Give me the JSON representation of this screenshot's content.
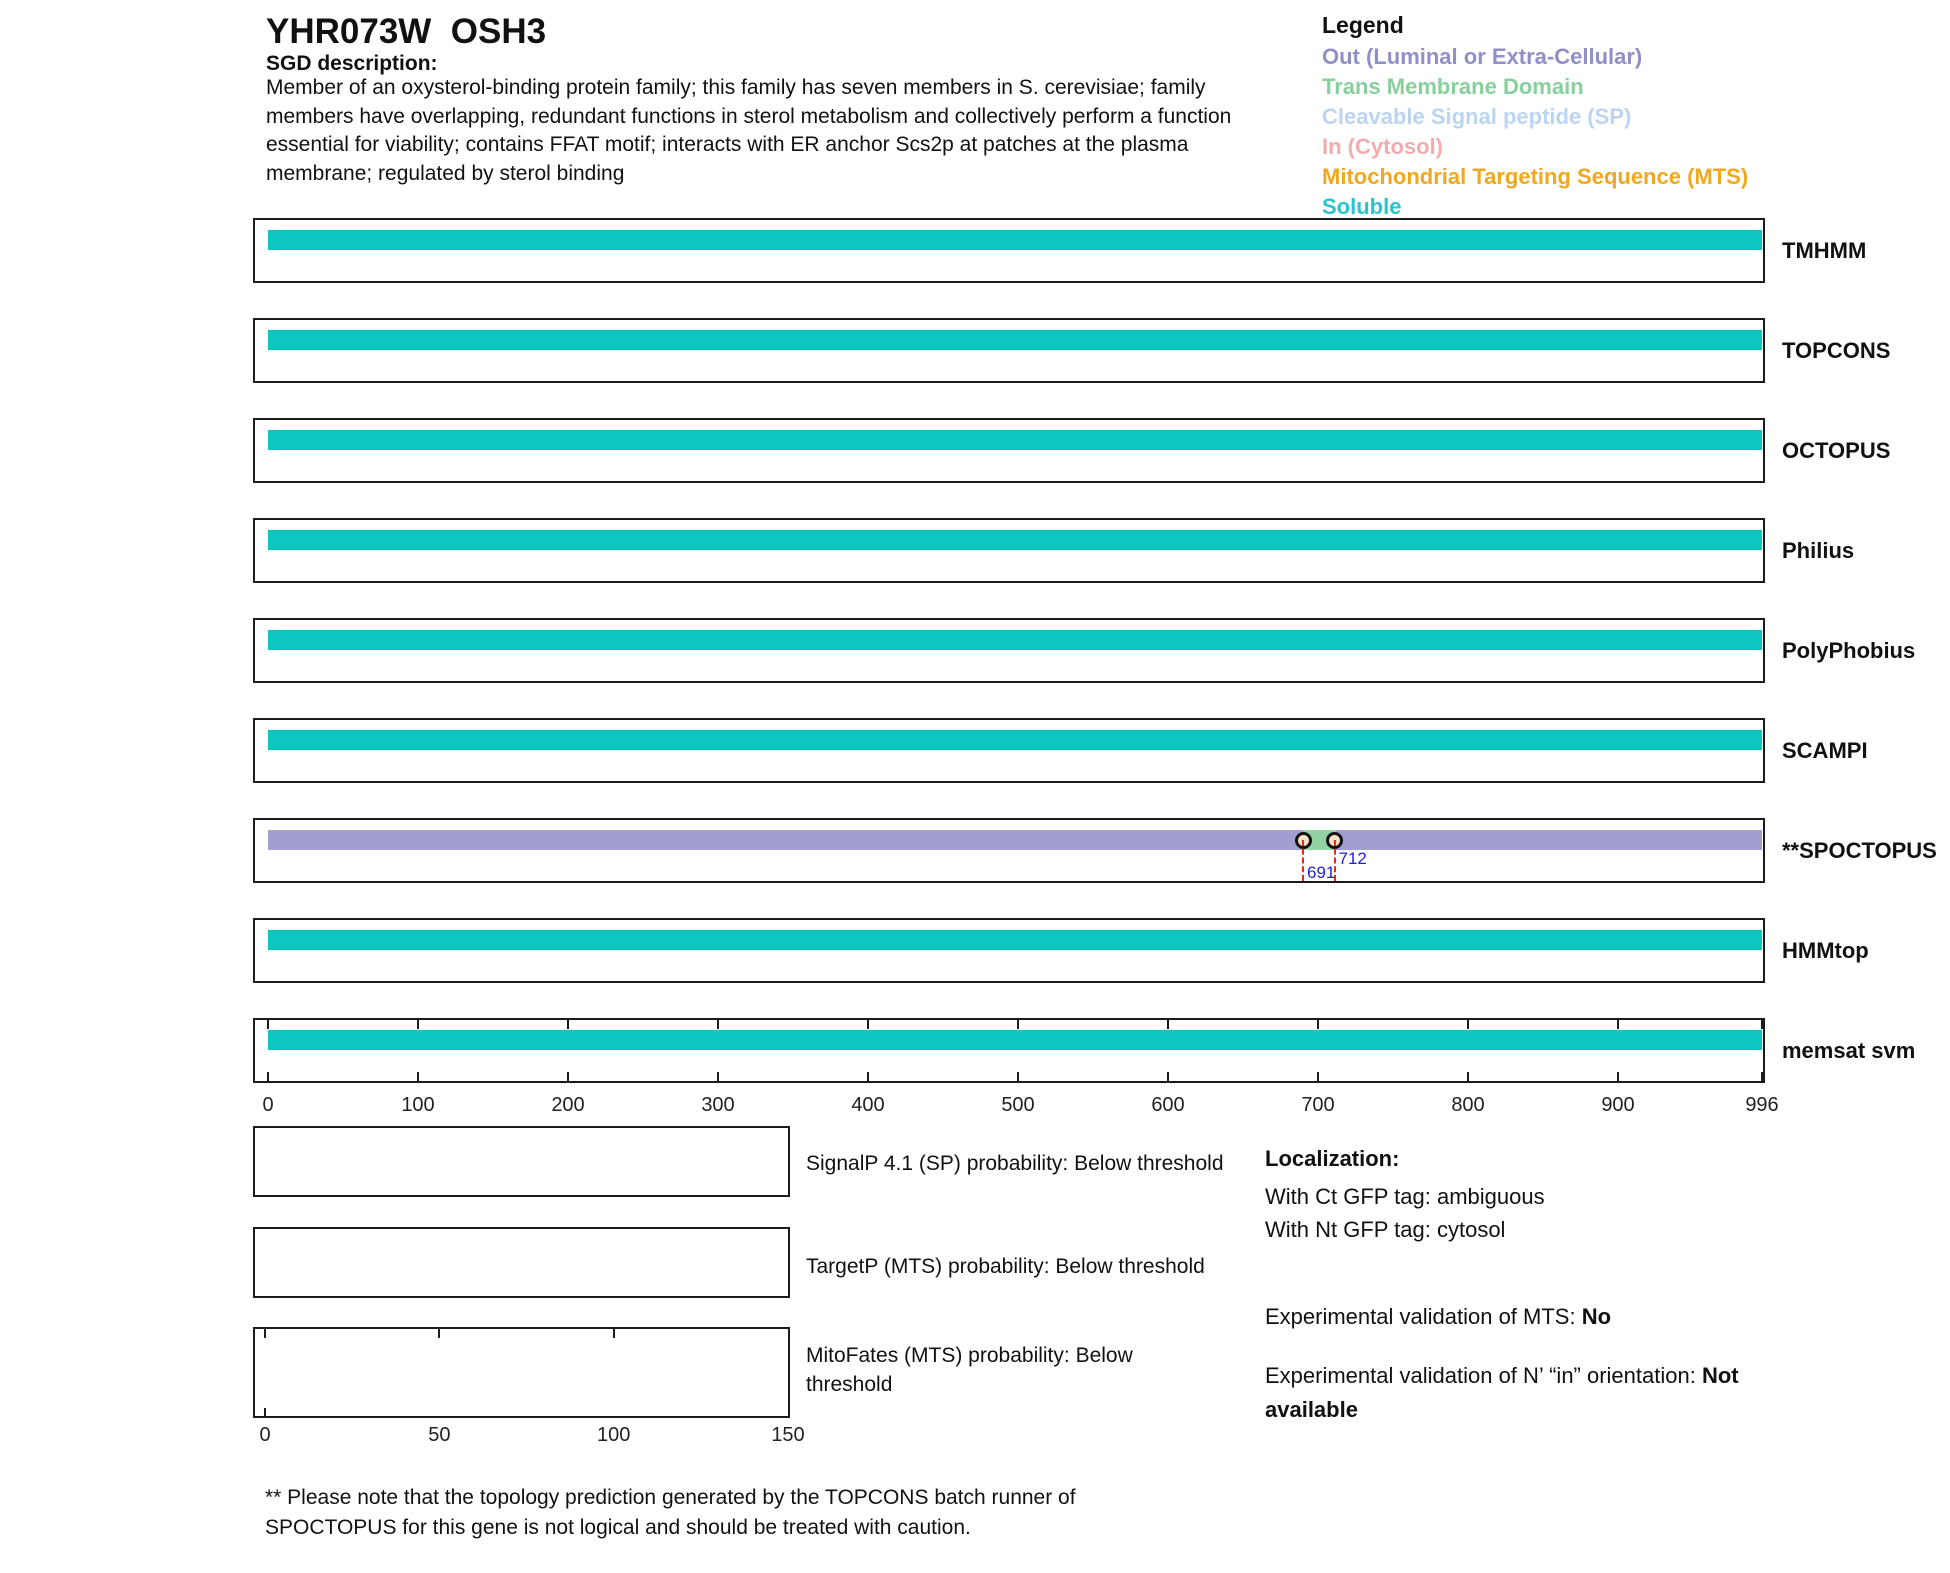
{
  "header": {
    "title": "YHR073W  OSH3",
    "sgd_label": "SGD description:",
    "description_lines": [
      "Member of an oxysterol-binding protein family; this family has seven members in S. cerevisiae; family",
      "members have overlapping, redundant functions in sterol metabolism and collectively perform a function",
      "essential for viability; contains FFAT motif; interacts with ER anchor Scs2p at patches at the plasma",
      "membrane; regulated by sterol binding"
    ]
  },
  "legend": {
    "title": "Legend",
    "items": [
      {
        "label": "Out (Luminal or Extra-Cellular)",
        "class": "out",
        "color": "#918FC7"
      },
      {
        "label": "Trans Membrane Domain",
        "class": "tm",
        "color": "#87D09C"
      },
      {
        "label": "Cleavable Signal peptide (SP)",
        "class": "sp",
        "color": "#BAD4F2"
      },
      {
        "label": "In (Cytosol)",
        "class": "in",
        "color": "#F3ACAE"
      },
      {
        "label": "Mitochondrial Targeting Sequence (MTS)",
        "class": "mts",
        "color": "#F0A81E"
      },
      {
        "label": "Soluble",
        "class": "soluble",
        "color": "#2BC3CE"
      }
    ]
  },
  "chart_data": {
    "type": "bar",
    "orientation": "horizontal-topology-tracks",
    "xlim": [
      0,
      996
    ],
    "x_ticks": [
      0,
      100,
      200,
      300,
      400,
      500,
      600,
      700,
      800,
      900,
      996
    ],
    "grid": false,
    "bar_colors": {
      "soluble": "#0DC6C2",
      "out": "#A09FCF",
      "tm": "#92D2A3"
    },
    "marker_annotations": {
      "line_color": "#FF1E1E",
      "label_color": "#1F1FE0",
      "circle_fill": "#F9E2C4"
    },
    "tracks": [
      {
        "label": "TMHMM",
        "segments": [
          {
            "start": 1,
            "end": 996,
            "class": "soluble"
          }
        ]
      },
      {
        "label": "TOPCONS",
        "segments": [
          {
            "start": 1,
            "end": 996,
            "class": "soluble"
          }
        ]
      },
      {
        "label": "OCTOPUS",
        "segments": [
          {
            "start": 1,
            "end": 996,
            "class": "soluble"
          }
        ]
      },
      {
        "label": "Philius",
        "segments": [
          {
            "start": 1,
            "end": 996,
            "class": "soluble"
          }
        ]
      },
      {
        "label": "PolyPhobius",
        "segments": [
          {
            "start": 1,
            "end": 996,
            "class": "soluble"
          }
        ]
      },
      {
        "label": "SCAMPI",
        "segments": [
          {
            "start": 1,
            "end": 996,
            "class": "soluble"
          }
        ]
      },
      {
        "label": "**SPOCTOPUS",
        "segments": [
          {
            "start": 1,
            "end": 690,
            "class": "out"
          },
          {
            "start": 691,
            "end": 712,
            "class": "tm"
          },
          {
            "start": 713,
            "end": 996,
            "class": "out"
          }
        ],
        "markers": [
          {
            "position": 691,
            "label": "691"
          },
          {
            "position": 712,
            "label": "712"
          }
        ]
      },
      {
        "label": "HMMtop",
        "segments": [
          {
            "start": 1,
            "end": 996,
            "class": "soluble"
          }
        ]
      },
      {
        "label": "memsat svm",
        "segments": [
          {
            "start": 1,
            "end": 996,
            "class": "soluble"
          }
        ],
        "axis": true
      }
    ]
  },
  "probability_panels": [
    {
      "label": "SignalP 4.1 (SP) probability: Below threshold"
    },
    {
      "label": "TargetP (MTS) probability: Below threshold"
    },
    {
      "label": "MitoFates (MTS) probability: Below threshold",
      "xlim": [
        0,
        150
      ],
      "axis_ticks": [
        0,
        50,
        100,
        150
      ]
    }
  ],
  "localization": {
    "heading": "Localization:",
    "ct_line": "With Ct GFP tag: ambiguous",
    "nt_line": "With Nt GFP tag: cytosol",
    "mts_prefix": "Experimental validation of MTS: ",
    "mts_value": "No",
    "orientation_prefix": "Experimental validation of N’ “in” orientation: ",
    "orientation_value": "Not available"
  },
  "footnote_lines": [
    "** Please note that the topology prediction generated by the TOPCONS batch runner of",
    "SPOCTOPUS for this gene is not logical and should be treated with caution."
  ]
}
